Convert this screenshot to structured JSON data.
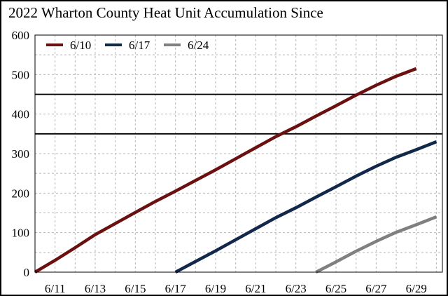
{
  "chart_data": {
    "type": "line",
    "title": "2022 Wharton County Heat Unit Accumulation Since",
    "xlabel": "",
    "ylabel": "",
    "ylim": [
      0,
      600
    ],
    "y_ticks": [
      "0",
      "100",
      "200",
      "300",
      "400",
      "500",
      "600"
    ],
    "x_ticks": [
      "6/11",
      "6/13",
      "6/15",
      "6/17",
      "6/19",
      "6/21",
      "6/23",
      "6/25",
      "6/27",
      "6/29"
    ],
    "grid": true,
    "legend_position": "top-left",
    "reference_lines": [
      350,
      450
    ],
    "series": [
      {
        "name": "6/10",
        "color": "#6b1010",
        "points": [
          [
            "6/10",
            0
          ],
          [
            "6/11",
            30
          ],
          [
            "6/12",
            62
          ],
          [
            "6/13",
            95
          ],
          [
            "6/14",
            123
          ],
          [
            "6/15",
            151
          ],
          [
            "6/16",
            179
          ],
          [
            "6/17",
            205
          ],
          [
            "6/18",
            232
          ],
          [
            "6/19",
            259
          ],
          [
            "6/20",
            287
          ],
          [
            "6/21",
            315
          ],
          [
            "6/22",
            343
          ],
          [
            "6/23",
            368
          ],
          [
            "6/24",
            395
          ],
          [
            "6/25",
            421
          ],
          [
            "6/26",
            448
          ],
          [
            "6/27",
            473
          ],
          [
            "6/28",
            496
          ],
          [
            "6/29",
            515
          ]
        ]
      },
      {
        "name": "6/17",
        "color": "#12284a",
        "points": [
          [
            "6/17",
            0
          ],
          [
            "6/18",
            27
          ],
          [
            "6/19",
            54
          ],
          [
            "6/20",
            82
          ],
          [
            "6/21",
            110
          ],
          [
            "6/22",
            138
          ],
          [
            "6/23",
            163
          ],
          [
            "6/24",
            190
          ],
          [
            "6/25",
            216
          ],
          [
            "6/26",
            243
          ],
          [
            "6/27",
            268
          ],
          [
            "6/28",
            291
          ],
          [
            "6/29",
            310
          ],
          [
            "6/30",
            330
          ]
        ]
      },
      {
        "name": "6/24",
        "color": "#808080",
        "points": [
          [
            "6/24",
            0
          ],
          [
            "6/25",
            26
          ],
          [
            "6/26",
            53
          ],
          [
            "6/27",
            78
          ],
          [
            "6/28",
            101
          ],
          [
            "6/29",
            120
          ],
          [
            "6/30",
            140
          ]
        ]
      }
    ]
  }
}
